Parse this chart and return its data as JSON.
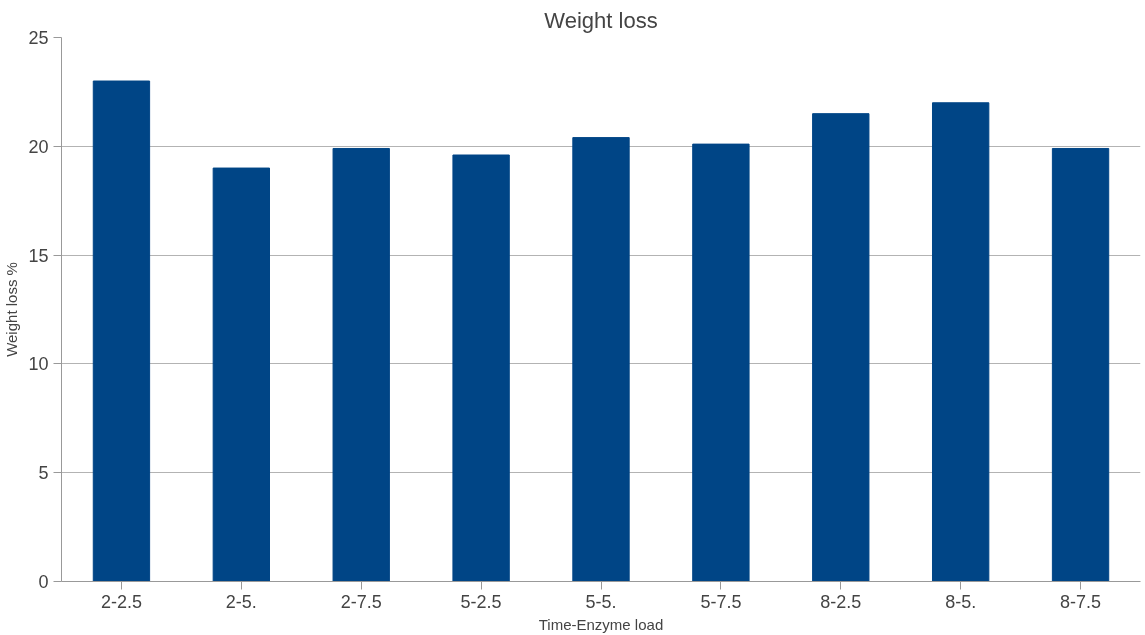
{
  "chart_data": {
    "type": "bar",
    "title": "Weight loss",
    "xlabel": "Time-Enzyme load",
    "ylabel": "Weight loss %",
    "categories": [
      "2-2.5",
      "2-5.",
      "2-7.5",
      "5-2.5",
      "5-5.",
      "5-7.5",
      "8-2.5",
      "8-5.",
      "8-7.5"
    ],
    "values": [
      23.0,
      19.0,
      19.9,
      19.6,
      20.4,
      20.1,
      21.5,
      22.0,
      19.9
    ],
    "color": "#004586",
    "ylim": [
      0,
      25
    ],
    "yticks": [
      0,
      5,
      10,
      15,
      20,
      25
    ],
    "grid": "y"
  }
}
